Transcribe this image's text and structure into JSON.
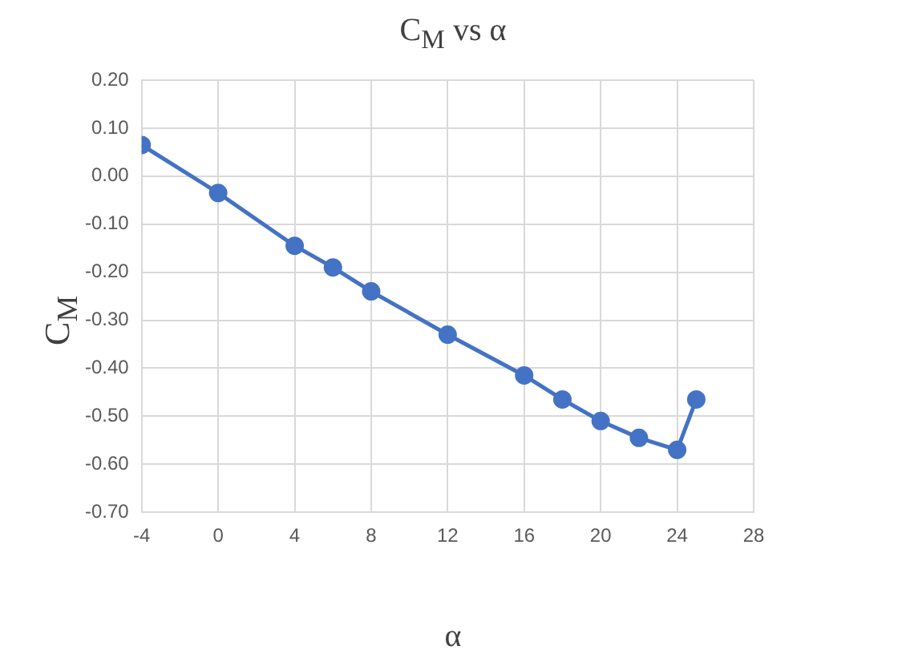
{
  "chart_data": {
    "type": "line",
    "title": "C$_{M}$ vs α",
    "xlabel": "α",
    "ylabel": "C$_{M}$",
    "x": [
      -4,
      0,
      4,
      6,
      8,
      12,
      16,
      18,
      20,
      22,
      24,
      25
    ],
    "series": [
      {
        "color": "#4472c4",
        "values": [
          0.065,
          -0.035,
          -0.145,
          -0.19,
          -0.24,
          -0.33,
          -0.415,
          -0.465,
          -0.51,
          -0.545,
          -0.57,
          -0.465
        ]
      }
    ],
    "xlim": [
      -4,
      28
    ],
    "xticks": [
      -4,
      0,
      4,
      8,
      12,
      16,
      20,
      24,
      28
    ],
    "ylim": [
      -0.7,
      0.2
    ],
    "yticks": [
      {
        "value": -0.7,
        "label": "-0.70"
      },
      {
        "value": -0.6,
        "label": "-0.60"
      },
      {
        "value": -0.5,
        "label": "-0.50"
      },
      {
        "value": -0.4,
        "label": "-0.40"
      },
      {
        "value": -0.3,
        "label": "-0.30"
      },
      {
        "value": -0.2,
        "label": "-0.20"
      },
      {
        "value": -0.1,
        "label": "-0.10"
      },
      {
        "value": 0,
        "label": "0.00"
      },
      {
        "value": 0.1,
        "label": "0.10"
      },
      {
        "value": 0.2,
        "label": "0.20"
      }
    ],
    "grid": true,
    "legend": false,
    "marker": "circle",
    "line_style": "solid"
  }
}
